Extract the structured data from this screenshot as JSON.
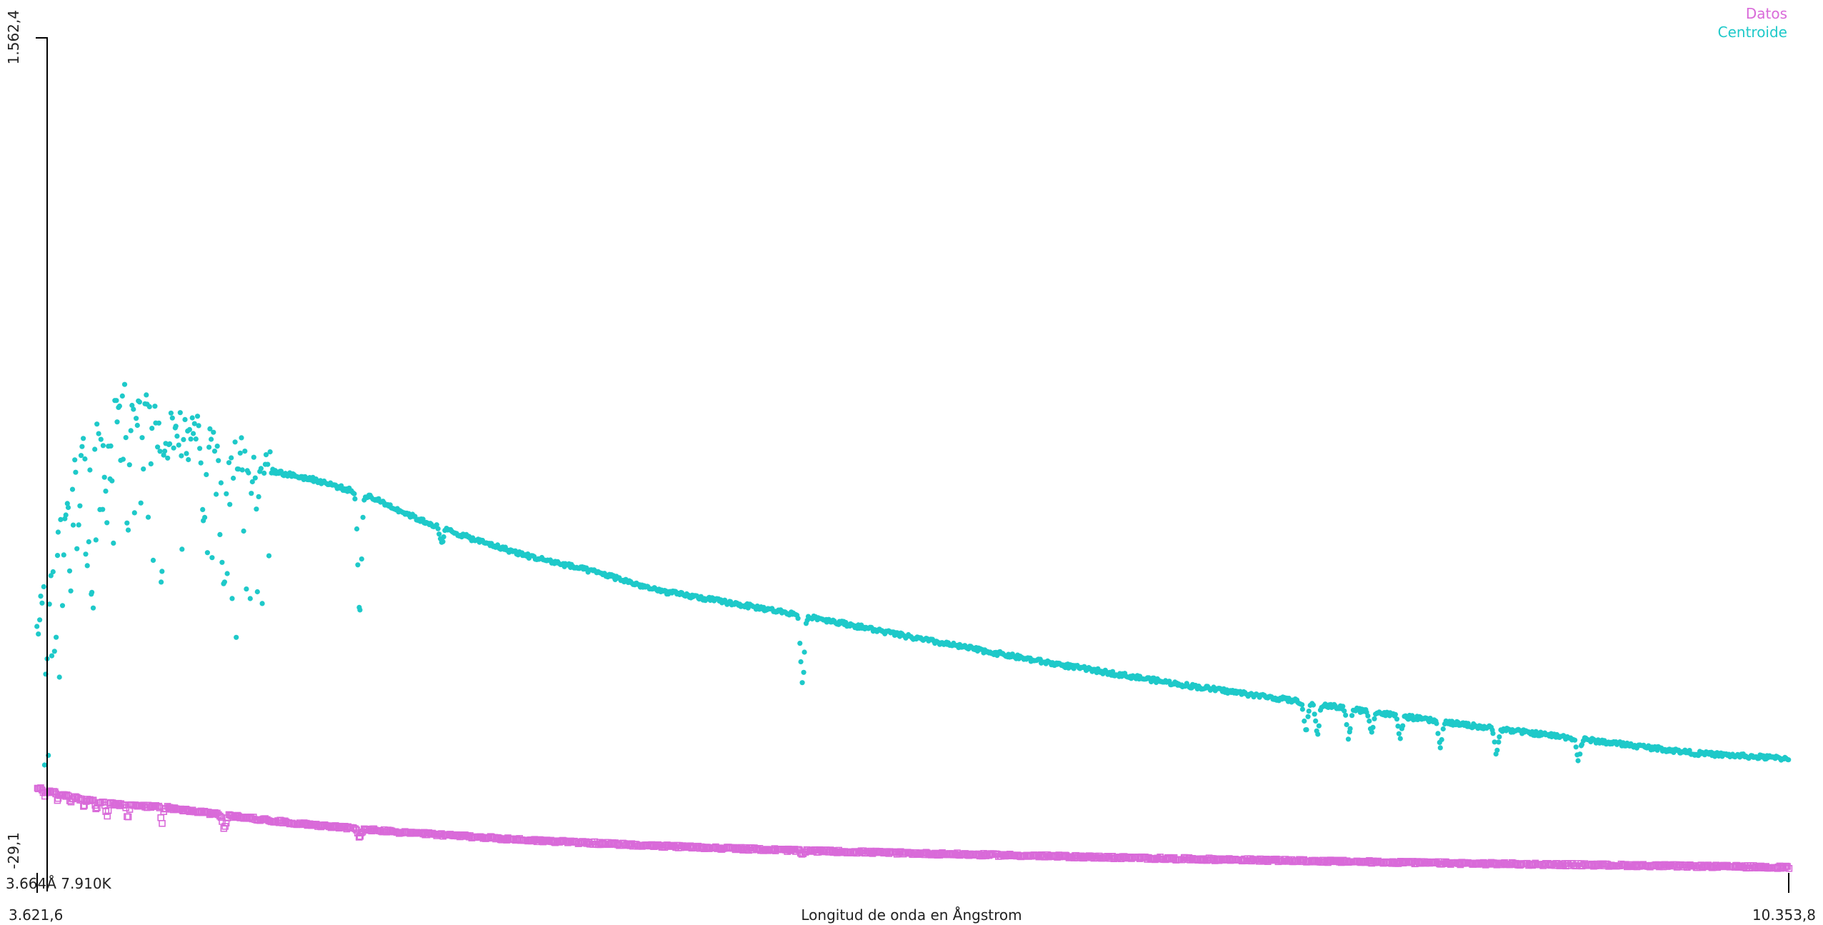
{
  "chart_data": {
    "type": "scatter",
    "title": "",
    "xlabel": "Longitud de onda en Ångstrom",
    "ylabel": "",
    "xlim": [
      3621.6,
      10353.8
    ],
    "ylim": [
      -29.1,
      1562.4
    ],
    "x_ticks": {
      "min_label": "3.621,6",
      "max_label": "10.353,8"
    },
    "y_ticks": {
      "min_label": "-29,1",
      "max_label": "1.562,4"
    },
    "cursor_readout": "3.664Å 7.910K",
    "legend": {
      "position": "top-right",
      "entries": [
        "Datos",
        "Centroide"
      ]
    },
    "grid": false,
    "colors": {
      "Datos": "#d96ad9",
      "Centroide": "#1ec9c9",
      "axis": "#000000"
    },
    "series": [
      {
        "name": "Datos",
        "marker": "square",
        "continuum": [
          [
            3621.6,
            160
          ],
          [
            3800,
            138
          ],
          [
            3950,
            128
          ],
          [
            4100,
            125
          ],
          [
            4300,
            112
          ],
          [
            4600,
            95
          ],
          [
            5000,
            78
          ],
          [
            5500,
            63
          ],
          [
            6000,
            52
          ],
          [
            6500,
            44
          ],
          [
            7000,
            38
          ],
          [
            7500,
            33
          ],
          [
            8000,
            28
          ],
          [
            8500,
            24
          ],
          [
            9000,
            20
          ],
          [
            9500,
            17
          ],
          [
            10000,
            14
          ],
          [
            10353.8,
            12
          ]
        ],
        "absorption_lines": [
          [
            3650,
            10
          ],
          [
            3700,
            12
          ],
          [
            3750,
            12
          ],
          [
            3800,
            12
          ],
          [
            3850,
            15
          ],
          [
            3890,
            24
          ],
          [
            3970,
            26
          ],
          [
            4101,
            30
          ],
          [
            4340,
            24
          ],
          [
            4861,
            14
          ],
          [
            6563,
            7
          ]
        ]
      },
      {
        "name": "Centroide",
        "marker": "circle",
        "continuum": [
          [
            3621.6,
            450
          ],
          [
            3650,
            520
          ],
          [
            3700,
            640
          ],
          [
            3750,
            720
          ],
          [
            3800,
            785
          ],
          [
            3850,
            810
          ],
          [
            3900,
            860
          ],
          [
            3950,
            880
          ],
          [
            4000,
            875
          ],
          [
            4050,
            860
          ],
          [
            4100,
            830
          ],
          [
            4150,
            825
          ],
          [
            4200,
            815
          ],
          [
            4300,
            805
          ],
          [
            4400,
            775
          ],
          [
            4500,
            755
          ],
          [
            4700,
            735
          ],
          [
            4900,
            705
          ],
          [
            5100,
            660
          ],
          [
            5300,
            625
          ],
          [
            5500,
            595
          ],
          [
            5800,
            560
          ],
          [
            6000,
            530
          ],
          [
            6300,
            505
          ],
          [
            6600,
            480
          ],
          [
            7000,
            440
          ],
          [
            7500,
            395
          ],
          [
            8000,
            355
          ],
          [
            8500,
            320
          ],
          [
            9000,
            285
          ],
          [
            9500,
            255
          ],
          [
            10000,
            225
          ],
          [
            10353.8,
            215
          ]
        ],
        "absorption_lines": [
          [
            3660,
            165
          ],
          [
            3690,
            230
          ],
          [
            3720,
            190
          ],
          [
            3750,
            210
          ],
          [
            3780,
            120
          ],
          [
            3820,
            145
          ],
          [
            3835,
            210
          ],
          [
            3889,
            240
          ],
          [
            3970,
            240
          ],
          [
            4101,
            240
          ],
          [
            4340,
            240
          ],
          [
            4861,
            220
          ],
          [
            5176,
            30
          ],
          [
            6563,
            130
          ],
          [
            8498,
            55
          ],
          [
            8542,
            55
          ],
          [
            8662,
            55
          ],
          [
            8750,
            35
          ],
          [
            8860,
            40
          ],
          [
            9015,
            45
          ],
          [
            9230,
            45
          ],
          [
            9546,
            40
          ]
        ]
      }
    ]
  }
}
